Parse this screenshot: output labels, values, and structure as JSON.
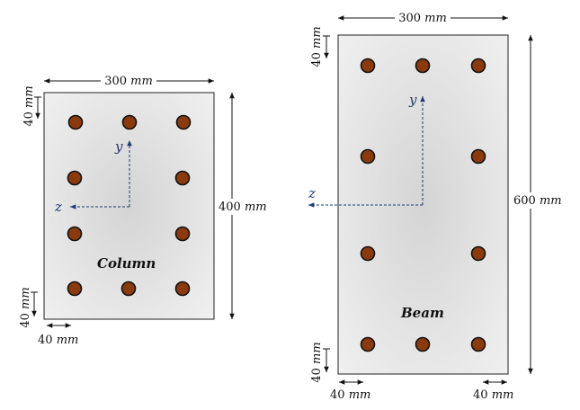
{
  "colors": {
    "section_fill_center": "#ffffff",
    "section_fill_edge": "#d9d9d9",
    "rebar_fill": "#8b3a0e",
    "axis": "#1f3a6e",
    "dimension": "#111111"
  },
  "column": {
    "title": "Column",
    "width_label": "300",
    "height_label": "400",
    "cover_top_label": "40",
    "cover_bottom_label": "40",
    "cover_side_label": "40",
    "unit": "mm",
    "axis_y": "y",
    "axis_z": "z"
  },
  "beam": {
    "title": "Beam",
    "width_label": "300",
    "height_label": "600",
    "cover_top_label": "40",
    "cover_bottom_label": "40",
    "cover_left_label": "40",
    "cover_right_label": "40",
    "unit": "mm",
    "axis_y": "y",
    "axis_z": "z"
  }
}
